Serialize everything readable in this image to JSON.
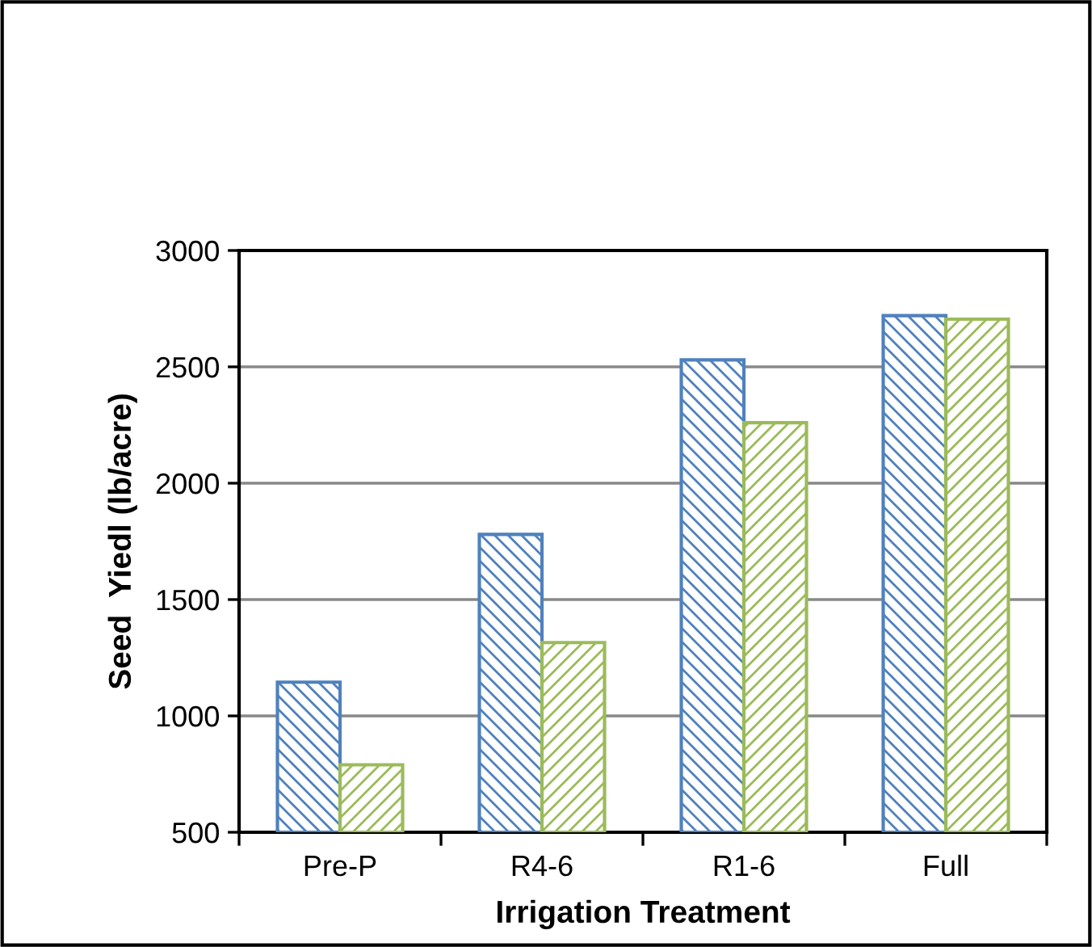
{
  "chart_data": {
    "type": "bar",
    "xlabel": "Irrigation Treatment",
    "ylabel": "Seed  Yiedl (lb/acre)",
    "categories": [
      "Pre-P",
      "R4-6",
      "R1-6",
      "Full"
    ],
    "series": [
      {
        "color": "#4f81bd",
        "values": [
          1145,
          1780,
          2530,
          2720
        ]
      },
      {
        "color": "#9bbb59",
        "values": [
          790,
          1315,
          2260,
          2705
        ]
      }
    ],
    "ylim": [
      500,
      3000
    ],
    "yticks": [
      500,
      1000,
      1500,
      2000,
      2500,
      3000
    ],
    "grid": "y"
  }
}
